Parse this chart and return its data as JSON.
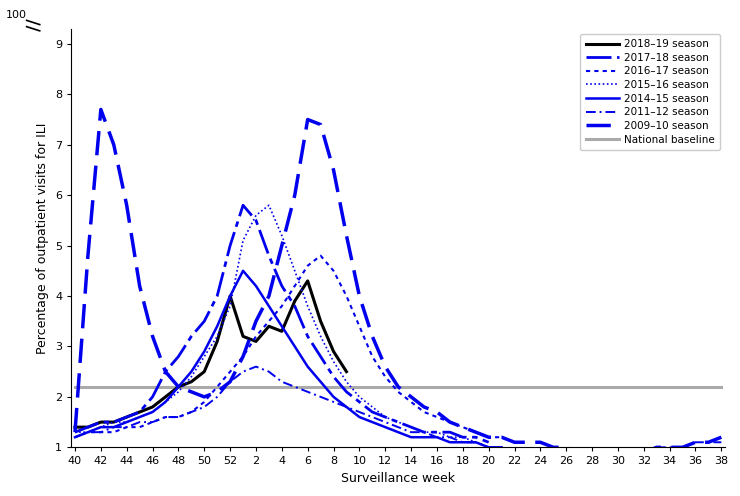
{
  "xlabel": "Surveillance week",
  "ylabel": "Percentage of outpatient visits for ILI",
  "ylim": [
    1.0,
    9.3
  ],
  "yticks": [
    1,
    2,
    3,
    4,
    5,
    6,
    7,
    8,
    9
  ],
  "baseline_value": 2.2,
  "national_baseline_color": "#aaaaaa",
  "seasons": {
    "2018-19": {
      "color": "#000000",
      "lw": 2.2,
      "ls": "solid",
      "data": {
        "40": 1.4,
        "41": 1.4,
        "42": 1.5,
        "43": 1.5,
        "44": 1.6,
        "45": 1.7,
        "46": 1.8,
        "47": 2.0,
        "48": 2.2,
        "49": 2.3,
        "50": 2.5,
        "51": 3.1,
        "52": 4.0,
        "1": 3.2,
        "2": 3.1,
        "3": 3.4,
        "4": 3.3,
        "5": 3.9,
        "6": 4.3,
        "7": 3.5,
        "8": 2.9,
        "9": 2.5
      }
    },
    "2017-18": {
      "color": "#0000ee",
      "lw": 2.0,
      "ls": "dashdot_long",
      "data": {
        "40": 1.3,
        "41": 1.4,
        "42": 1.5,
        "43": 1.5,
        "44": 1.6,
        "45": 1.7,
        "46": 2.0,
        "47": 2.5,
        "48": 2.8,
        "49": 3.2,
        "50": 3.5,
        "51": 4.0,
        "52": 5.0,
        "1": 5.8,
        "2": 5.5,
        "3": 4.8,
        "4": 4.2,
        "5": 3.8,
        "6": 3.2,
        "7": 2.8,
        "8": 2.4,
        "9": 2.1,
        "10": 1.9,
        "11": 1.7,
        "12": 1.6,
        "13": 1.5,
        "14": 1.4,
        "15": 1.3,
        "16": 1.3,
        "17": 1.3,
        "18": 1.2,
        "19": 1.2,
        "20": 1.1
      }
    },
    "2016-17": {
      "color": "#0000ee",
      "lw": 1.5,
      "ls": "dotted",
      "data": {
        "40": 1.2,
        "41": 1.3,
        "42": 1.3,
        "43": 1.3,
        "44": 1.4,
        "45": 1.4,
        "46": 1.5,
        "47": 1.6,
        "48": 1.6,
        "49": 1.7,
        "50": 1.9,
        "51": 2.2,
        "52": 2.5,
        "1": 2.8,
        "2": 3.2,
        "3": 3.5,
        "4": 3.8,
        "5": 4.2,
        "6": 4.6,
        "7": 4.8,
        "8": 4.5,
        "9": 4.0,
        "10": 3.4,
        "11": 2.8,
        "12": 2.4,
        "13": 2.1,
        "14": 1.9,
        "15": 1.7,
        "16": 1.6,
        "17": 1.5,
        "18": 1.4,
        "19": 1.3,
        "20": 1.2,
        "21": 1.2,
        "22": 1.1,
        "23": 1.1
      }
    },
    "2015-16": {
      "color": "#0000ee",
      "lw": 1.2,
      "ls": "densely_dotted",
      "data": {
        "40": 1.3,
        "41": 1.3,
        "42": 1.4,
        "43": 1.5,
        "44": 1.5,
        "45": 1.6,
        "46": 1.7,
        "47": 1.9,
        "48": 2.1,
        "49": 2.4,
        "50": 2.8,
        "51": 3.2,
        "52": 3.8,
        "1": 5.1,
        "2": 5.6,
        "3": 5.8,
        "4": 5.2,
        "5": 4.5,
        "6": 3.8,
        "7": 3.2,
        "8": 2.7,
        "9": 2.3,
        "10": 2.0,
        "11": 1.8,
        "12": 1.6,
        "13": 1.5,
        "14": 1.4,
        "15": 1.3,
        "16": 1.3,
        "17": 1.2,
        "18": 1.2,
        "19": 1.1
      }
    },
    "2014-15": {
      "color": "#0000ee",
      "lw": 1.8,
      "ls": "solid",
      "data": {
        "40": 1.2,
        "41": 1.3,
        "42": 1.4,
        "43": 1.4,
        "44": 1.5,
        "45": 1.6,
        "46": 1.7,
        "47": 1.9,
        "48": 2.2,
        "49": 2.5,
        "50": 2.9,
        "51": 3.4,
        "52": 4.0,
        "1": 4.5,
        "2": 4.2,
        "3": 3.8,
        "4": 3.4,
        "5": 3.0,
        "6": 2.6,
        "7": 2.3,
        "8": 2.0,
        "9": 1.8,
        "10": 1.6,
        "11": 1.5,
        "12": 1.4,
        "13": 1.3,
        "14": 1.2,
        "15": 1.2,
        "16": 1.2,
        "17": 1.1,
        "18": 1.1,
        "19": 1.1,
        "20": 1.0,
        "21": 1.0
      }
    },
    "2011-12": {
      "color": "#0000ee",
      "lw": 1.4,
      "ls": "dashdot_short",
      "data": {
        "40": 1.2,
        "41": 1.3,
        "42": 1.3,
        "43": 1.4,
        "44": 1.4,
        "45": 1.5,
        "46": 1.5,
        "47": 1.6,
        "48": 1.6,
        "49": 1.7,
        "50": 1.8,
        "51": 2.0,
        "52": 2.3,
        "1": 2.5,
        "2": 2.6,
        "3": 2.5,
        "4": 2.3,
        "5": 2.2,
        "6": 2.1,
        "7": 2.0,
        "8": 1.9,
        "9": 1.8,
        "10": 1.7,
        "11": 1.6,
        "12": 1.5,
        "13": 1.4,
        "14": 1.3,
        "15": 1.3,
        "16": 1.2,
        "17": 1.2,
        "18": 1.1,
        "19": 1.1,
        "20": 1.0,
        "21": 1.0,
        "22": 0.9,
        "23": 0.9,
        "24": 0.9,
        "25": 0.9,
        "26": 0.8,
        "27": 0.8,
        "28": 0.8,
        "29": 0.8,
        "30": 0.9,
        "31": 0.9,
        "32": 0.9,
        "33": 1.0,
        "34": 1.0,
        "35": 1.0,
        "36": 1.1,
        "37": 1.1,
        "38": 1.1
      }
    },
    "2009-10": {
      "color": "#0000ee",
      "lw": 2.5,
      "ls": "dashed",
      "data": {
        "40": 1.3,
        "41": 4.8,
        "42": 7.7,
        "43": 7.0,
        "44": 5.8,
        "45": 4.2,
        "46": 3.2,
        "47": 2.5,
        "48": 2.2,
        "49": 2.1,
        "50": 2.0,
        "51": 2.1,
        "52": 2.3,
        "1": 2.8,
        "2": 3.5,
        "3": 4.0,
        "4": 5.0,
        "5": 6.0,
        "6": 7.5,
        "7": 7.4,
        "8": 6.5,
        "9": 5.2,
        "10": 4.0,
        "11": 3.2,
        "12": 2.6,
        "13": 2.2,
        "14": 2.0,
        "15": 1.8,
        "16": 1.7,
        "17": 1.5,
        "18": 1.4,
        "19": 1.3,
        "20": 1.2,
        "21": 1.2,
        "22": 1.1,
        "23": 1.1,
        "24": 1.1,
        "25": 1.0,
        "26": 1.0,
        "27": 0.9,
        "28": 0.9,
        "29": 0.9,
        "30": 0.9,
        "31": 0.9,
        "32": 0.9,
        "33": 1.0,
        "34": 1.0,
        "35": 1.0,
        "36": 1.1,
        "37": 1.1,
        "38": 1.2
      }
    }
  }
}
